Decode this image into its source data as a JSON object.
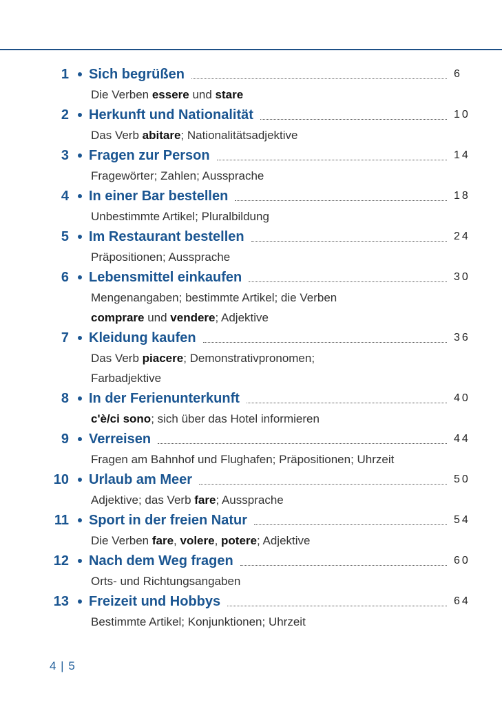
{
  "entries": [
    {
      "number": 1,
      "title": "Sich begrüßen",
      "page": 6,
      "description": [
        [
          {
            "text": "Die Verben "
          },
          {
            "text": "essere",
            "bold": true
          },
          {
            "text": " und "
          },
          {
            "text": "stare",
            "bold": true
          }
        ]
      ]
    },
    {
      "number": 2,
      "title": "Herkunft und Nationalität",
      "page": 10,
      "description": [
        [
          {
            "text": "Das Verb "
          },
          {
            "text": "abitare",
            "bold": true
          },
          {
            "text": "; Nationalitätsadjektive"
          }
        ]
      ]
    },
    {
      "number": 3,
      "title": "Fragen zur Person",
      "page": 14,
      "description": [
        [
          {
            "text": "Fragewörter; Zahlen; Aussprache"
          }
        ]
      ]
    },
    {
      "number": 4,
      "title": "In einer Bar bestellen",
      "page": 18,
      "description": [
        [
          {
            "text": "Unbestimmte Artikel; Pluralbildung"
          }
        ]
      ]
    },
    {
      "number": 5,
      "title": "Im Restaurant bestellen",
      "page": 24,
      "description": [
        [
          {
            "text": "Präpositionen; Aussprache"
          }
        ]
      ]
    },
    {
      "number": 6,
      "title": "Lebensmittel einkaufen",
      "page": 30,
      "description": [
        [
          {
            "text": "Mengenangaben; bestimmte Artikel; die Verben"
          }
        ],
        [
          {
            "text": "comprare",
            "bold": true
          },
          {
            "text": " und "
          },
          {
            "text": "vendere",
            "bold": true
          },
          {
            "text": "; Adjektive"
          }
        ]
      ]
    },
    {
      "number": 7,
      "title": "Kleidung kaufen",
      "page": 36,
      "description": [
        [
          {
            "text": "Das Verb "
          },
          {
            "text": "piacere",
            "bold": true
          },
          {
            "text": "; Demonstrativpronomen;"
          }
        ],
        [
          {
            "text": "Farbadjektive"
          }
        ]
      ]
    },
    {
      "number": 8,
      "title": "In der Ferienunterkunft",
      "page": 40,
      "description": [
        [
          {
            "text": "c'è/ci sono",
            "bold": true
          },
          {
            "text": "; sich über das Hotel informieren"
          }
        ]
      ]
    },
    {
      "number": 9,
      "title": "Verreisen",
      "page": 44,
      "description": [
        [
          {
            "text": "Fragen am Bahnhof und Flughafen; Präpositionen; Uhrzeit"
          }
        ]
      ]
    },
    {
      "number": 10,
      "title": "Urlaub am Meer",
      "page": 50,
      "description": [
        [
          {
            "text": "Adjektive; das Verb "
          },
          {
            "text": "fare",
            "bold": true
          },
          {
            "text": "; Aussprache"
          }
        ]
      ]
    },
    {
      "number": 11,
      "title": "Sport in der freien Natur",
      "page": 54,
      "description": [
        [
          {
            "text": "Die Verben "
          },
          {
            "text": "fare",
            "bold": true
          },
          {
            "text": ", "
          },
          {
            "text": "volere",
            "bold": true
          },
          {
            "text": ", "
          },
          {
            "text": "potere",
            "bold": true
          },
          {
            "text": "; Adjektive"
          }
        ]
      ]
    },
    {
      "number": 12,
      "title": "Nach dem Weg fragen",
      "page": 60,
      "description": [
        [
          {
            "text": "Orts- und Richtungsangaben"
          }
        ]
      ]
    },
    {
      "number": 13,
      "title": "Freizeit und Hobbys",
      "page": 64,
      "description": [
        [
          {
            "text": "Bestimmte Artikel; Konjunktionen; Uhrzeit"
          }
        ]
      ]
    }
  ],
  "footer": "4 | 5"
}
